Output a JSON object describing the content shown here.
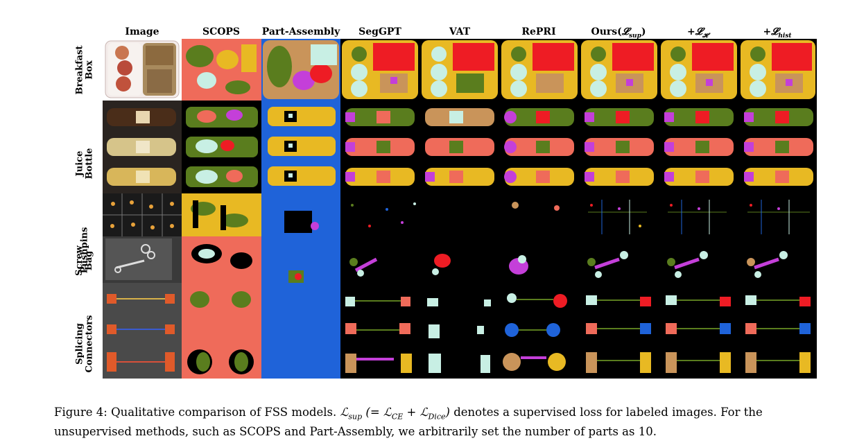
{
  "figure": {
    "columns": [
      "Image",
      "SCOPS",
      "Part-Assembly",
      "SegGPT",
      "VAT",
      "RePRI",
      "Ours(",
      "+",
      "+"
    ],
    "column_math": {
      "ours_sub": "𝓛",
      "ours_sub_index": "sup",
      "ours_close": ")",
      "h_sym": "𝓛",
      "h_index": "𝓗",
      "hist_sym": "𝓛",
      "hist_index": "hist"
    },
    "rows": [
      {
        "line1": "Breakfast",
        "line2": "Box"
      },
      {
        "line1": "Juice",
        "line2": "Bottle"
      },
      {
        "line1": "Pushpins",
        "line2": ""
      },
      {
        "line1": "Screw",
        "line2": "Bag"
      },
      {
        "line1": "Splicing",
        "line2": "Connectors"
      }
    ]
  },
  "caption": {
    "label": "Figure 4:",
    "line1_a": "Qualitative comparison of FSS models.",
    "line1_b": "denotes a supervised loss for labeled images. For the",
    "line2": "unsupervised methods, such as SCOPS and Part-Assembly, we arbitrarily set the number of parts as 10.",
    "math_loss": "ℒ",
    "math_sup": "sup",
    "math_eq": "(= ℒ",
    "math_ce": "CE",
    "math_plus": "+ ℒ",
    "math_dice": "Dice",
    "math_close": ")"
  },
  "palette": {
    "yellow": "#e8b923",
    "red": "#ee1c24",
    "mint": "#c8efe4",
    "olive": "#5a7d1e",
    "magenta": "#c43fd9",
    "tan": "#c9945a",
    "salmon": "#ef6b5a",
    "blue": "#1f63d9",
    "black": "#000000"
  }
}
